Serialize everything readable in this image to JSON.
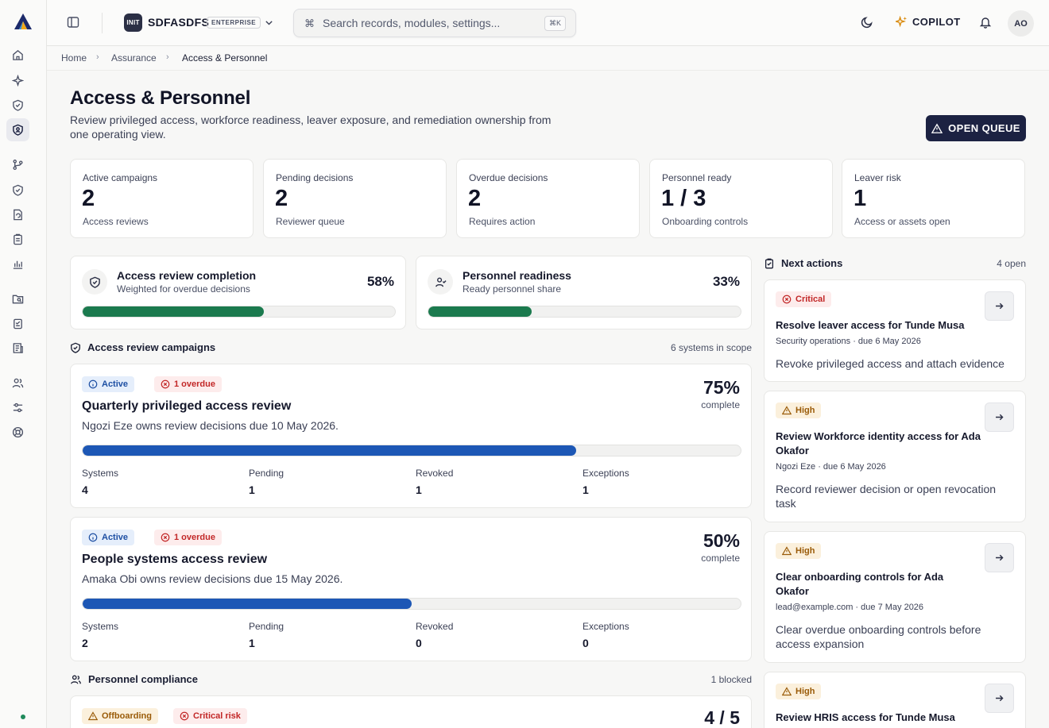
{
  "org": {
    "badge": "INIT",
    "name": "SDFASDFS",
    "tier": "ENTERPRISE"
  },
  "search": {
    "placeholder": "Search records, modules, settings...",
    "shortcut": "⌘K"
  },
  "topbar": {
    "copilot_label": "COPILOT",
    "avatar_initials": "AO"
  },
  "breadcrumb": [
    "Home",
    "Assurance",
    "Access & Personnel"
  ],
  "header": {
    "title": "Access & Personnel",
    "description": "Review privileged access, workforce readiness, leaver exposure, and remediation ownership from one operating view.",
    "primary_button": "OPEN QUEUE"
  },
  "kpis": [
    {
      "label": "Active campaigns",
      "value": "2",
      "sub": "Access reviews"
    },
    {
      "label": "Pending decisions",
      "value": "2",
      "sub": "Reviewer queue"
    },
    {
      "label": "Overdue decisions",
      "value": "2",
      "sub": "Requires action"
    },
    {
      "label": "Personnel ready",
      "value": "1 / 3",
      "sub": "Onboarding controls"
    },
    {
      "label": "Leaver risk",
      "value": "1",
      "sub": "Access or assets open"
    }
  ],
  "progress_cards": [
    {
      "title": "Access review completion",
      "subtitle": "Weighted for overdue decisions",
      "value": "58%",
      "fraction": 0.58
    },
    {
      "title": "Personnel readiness",
      "subtitle": "Ready personnel share",
      "value": "33%",
      "fraction": 0.33
    }
  ],
  "campaigns_section": {
    "title": "Access review campaigns",
    "meta": "6 systems in scope"
  },
  "campaigns": [
    {
      "status": "Active",
      "overdue": "1 overdue",
      "title": "Quarterly privileged access review",
      "desc": "Ngozi Eze owns review decisions due 10 May 2026.",
      "percent": "75%",
      "percent_label": "complete",
      "fraction": 0.75,
      "stats": [
        {
          "label": "Systems",
          "value": "4"
        },
        {
          "label": "Pending",
          "value": "1"
        },
        {
          "label": "Revoked",
          "value": "1"
        },
        {
          "label": "Exceptions",
          "value": "1"
        }
      ]
    },
    {
      "status": "Active",
      "overdue": "1 overdue",
      "title": "People systems access review",
      "desc": "Amaka Obi owns review decisions due 15 May 2026.",
      "percent": "50%",
      "percent_label": "complete",
      "fraction": 0.5,
      "stats": [
        {
          "label": "Systems",
          "value": "2"
        },
        {
          "label": "Pending",
          "value": "1"
        },
        {
          "label": "Revoked",
          "value": "0"
        },
        {
          "label": "Exceptions",
          "value": "0"
        }
      ]
    }
  ],
  "personnel_section": {
    "title": "Personnel compliance",
    "meta": "1 blocked"
  },
  "personnel_card": {
    "tag1": "Offboarding",
    "tag2": "Critical risk",
    "value": "4 / 5"
  },
  "next_actions": {
    "title": "Next actions",
    "meta": "4 open",
    "items": [
      {
        "severity": "Critical",
        "title": "Resolve leaver access for Tunde Musa",
        "meta": "Security operations · due 6 May 2026",
        "desc": "Revoke privileged access and attach evidence"
      },
      {
        "severity": "High",
        "title": "Review Workforce identity access for Ada Okafor",
        "meta": "Ngozi Eze · due 6 May 2026",
        "desc": "Record reviewer decision or open revocation task"
      },
      {
        "severity": "High",
        "title": "Clear onboarding controls for Ada Okafor",
        "meta": "lead@example.com · due 7 May 2026",
        "desc": "Clear overdue onboarding controls before access expansion"
      },
      {
        "severity": "High",
        "title": "Review HRIS access for Tunde Musa",
        "meta": "",
        "desc": ""
      }
    ]
  },
  "colors": {
    "primary": "#1c2242",
    "progress_green": "#1b7a4e",
    "progress_blue": "#1d57b5",
    "critical": "#c22727",
    "high": "#9a5b08"
  }
}
